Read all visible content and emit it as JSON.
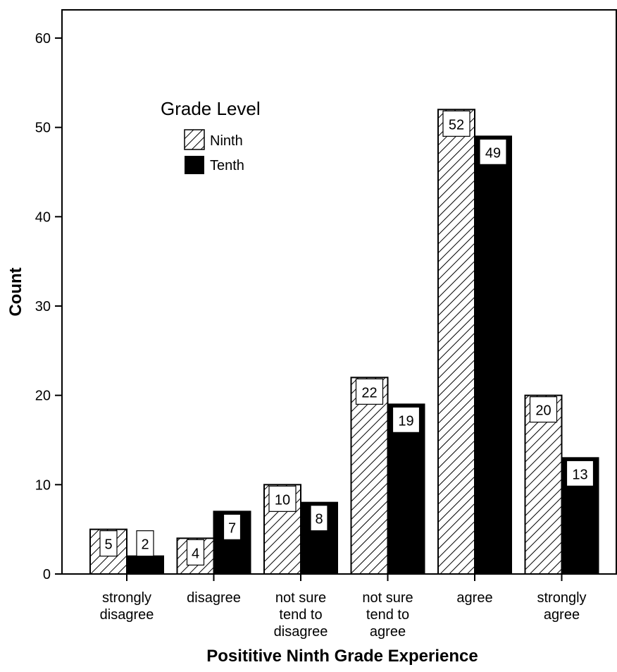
{
  "chart_data": {
    "type": "bar",
    "xlabel": "Posititive Ninth Grade Experience",
    "ylabel": "Count",
    "ylim": [
      0,
      60
    ],
    "yticks": [
      "0",
      "10",
      "20",
      "30",
      "40",
      "50",
      "60"
    ],
    "categories": [
      [
        "strongly",
        "disagree"
      ],
      [
        "disagree"
      ],
      [
        "not sure",
        "tend to",
        "disagree"
      ],
      [
        "not sure",
        "tend to",
        "agree"
      ],
      [
        "agree"
      ],
      [
        "strongly",
        "agree"
      ]
    ],
    "legend_title": "Grade Level",
    "legend_placement": "top-left",
    "grid": false,
    "series": [
      {
        "name": "Ninth",
        "pattern": "diagonal-hatch",
        "color": "#000000",
        "values": [
          5,
          4,
          10,
          22,
          52,
          20
        ]
      },
      {
        "name": "Tenth",
        "pattern": "solid",
        "color": "#000000",
        "values": [
          2,
          7,
          8,
          19,
          49,
          13
        ]
      }
    ]
  }
}
